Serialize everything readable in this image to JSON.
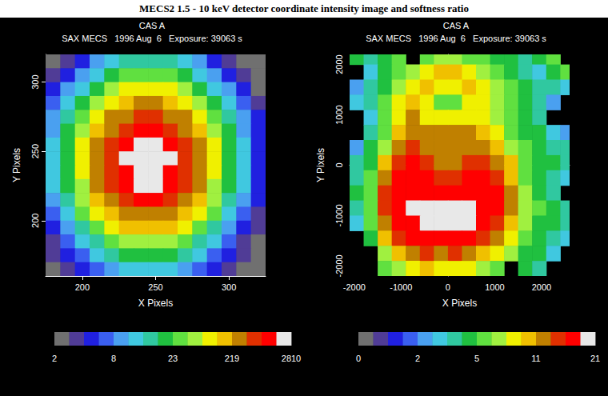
{
  "title": "MECS2 1.5 - 10 keV detector coordinate intensity image and softness ratio",
  "chart_data": [
    {
      "type": "heatmap",
      "title": "CAS A",
      "subtitle": "SAX MECS   1996 Aug  6   Exposure: 39063 s",
      "xlabel": "X Pixels",
      "ylabel": "Y Pixels",
      "xlim": [
        175,
        325
      ],
      "ylim": [
        160,
        320
      ],
      "xticks": [
        200,
        250,
        300
      ],
      "yticks": [
        200,
        250,
        300
      ],
      "x": [
        180,
        190,
        200,
        210,
        220,
        230,
        240,
        250,
        260,
        270,
        280,
        290,
        300,
        310,
        320
      ],
      "y": [
        315,
        305,
        295,
        285,
        275,
        265,
        255,
        245,
        235,
        225,
        215,
        205,
        195,
        185,
        175,
        165
      ],
      "cells": [
        [
          2.5,
          4,
          5.5,
          10,
          13,
          17,
          17,
          17,
          17,
          13,
          10,
          5.5,
          4,
          2.5,
          2.5
        ],
        [
          4,
          5.5,
          10,
          13,
          21,
          40,
          40,
          40,
          40,
          21,
          13,
          10,
          5.5,
          4,
          2.5
        ],
        [
          5.5,
          10,
          13,
          21,
          90,
          140,
          140,
          140,
          140,
          90,
          21,
          13,
          10,
          5.5,
          2.5
        ],
        [
          7,
          13,
          21,
          90,
          140,
          190,
          400,
          400,
          190,
          140,
          90,
          21,
          13,
          7,
          4
        ],
        [
          10,
          17,
          40,
          140,
          400,
          400,
          1100,
          1100,
          400,
          400,
          140,
          40,
          17,
          10,
          5.5
        ],
        [
          10,
          21,
          90,
          190,
          400,
          1100,
          1800,
          1800,
          1100,
          400,
          190,
          90,
          21,
          10,
          5.5
        ],
        [
          13,
          21,
          140,
          400,
          1100,
          1800,
          2500,
          2500,
          1800,
          1100,
          400,
          140,
          21,
          13,
          5.5
        ],
        [
          13,
          21,
          140,
          400,
          1100,
          2500,
          2500,
          2500,
          2500,
          1100,
          400,
          140,
          21,
          13,
          5.5
        ],
        [
          13,
          21,
          140,
          400,
          1100,
          1800,
          2500,
          2500,
          1800,
          1100,
          400,
          140,
          21,
          13,
          5.5
        ],
        [
          13,
          21,
          90,
          400,
          1100,
          1800,
          2500,
          2500,
          1800,
          1100,
          400,
          90,
          21,
          13,
          5.5
        ],
        [
          10,
          17,
          90,
          190,
          400,
          1100,
          1800,
          1800,
          1100,
          400,
          190,
          90,
          17,
          10,
          5.5
        ],
        [
          7,
          13,
          40,
          140,
          190,
          400,
          400,
          400,
          400,
          190,
          140,
          40,
          13,
          7,
          4
        ],
        [
          5.5,
          10,
          17,
          40,
          140,
          190,
          190,
          190,
          190,
          140,
          40,
          17,
          10,
          5.5,
          4
        ],
        [
          4,
          7,
          13,
          17,
          40,
          90,
          90,
          90,
          90,
          40,
          17,
          13,
          7,
          4,
          2.5
        ],
        [
          4,
          5.5,
          7,
          13,
          17,
          21,
          21,
          21,
          21,
          17,
          13,
          7,
          5.5,
          4,
          2.5
        ],
        [
          2.5,
          4,
          5.5,
          7,
          10,
          13,
          13,
          13,
          13,
          10,
          7,
          5.5,
          4,
          2.5,
          2.5
        ]
      ],
      "colorbar": {
        "range": [
          2,
          2810
        ],
        "ticks": [
          2,
          8,
          23,
          219,
          2810
        ],
        "colors": [
          "#707070",
          "#503c96",
          "#2020e0",
          "#3a5ff0",
          "#4aa0f0",
          "#40c8e0",
          "#30c8a0",
          "#20c040",
          "#60e040",
          "#a0f040",
          "#f0f000",
          "#f0c000",
          "#c08000",
          "#e03000",
          "#ff0000",
          "#e8e8e8"
        ]
      }
    },
    {
      "type": "heatmap",
      "title": "CAS A",
      "subtitle": "SAX MECS   1996 Aug  6   Exposure: 39063 s",
      "xlabel": "X Pixels",
      "ylabel": "Y Pixels",
      "xlim": [
        -2100,
        2600
      ],
      "ylim": [
        -2200,
        2200
      ],
      "xticks": [
        -2000,
        -1000,
        0,
        1000,
        2000
      ],
      "yticks": [
        -2000,
        -1000,
        0,
        1000,
        2000
      ],
      "x": [
        -1950,
        -1650,
        -1350,
        -1050,
        -750,
        -450,
        -150,
        150,
        450,
        750,
        1050,
        1350,
        1650,
        1950,
        2250,
        2550
      ],
      "y": [
        2150,
        1850,
        1550,
        1250,
        950,
        650,
        350,
        50,
        -250,
        -550,
        -850,
        -1150,
        -1450,
        -1750,
        -2050
      ],
      "cells": [
        [
          4.6,
          3.9,
          4.6,
          5.7,
          null,
          5.7,
          7.2,
          7.2,
          5.7,
          5.7,
          4.6,
          4.6,
          3.9,
          4.6,
          5.7,
          null
        ],
        [
          null,
          3.1,
          4.6,
          5.7,
          7.2,
          8.7,
          10.2,
          10.2,
          8.7,
          7.2,
          5.7,
          4.6,
          3.9,
          3.1,
          4.6,
          5.7
        ],
        [
          2.4,
          3.9,
          4.6,
          7.2,
          8.7,
          10.2,
          8.7,
          8.7,
          10.2,
          8.7,
          7.2,
          5.7,
          4.6,
          3.9,
          3.9,
          3.1
        ],
        [
          3.1,
          3.9,
          5.7,
          8.7,
          10.2,
          8.7,
          5.7,
          5.7,
          8.7,
          8.7,
          7.2,
          5.7,
          4.6,
          3.9,
          2.4,
          null
        ],
        [
          null,
          3.1,
          5.7,
          8.7,
          12.2,
          8.7,
          8.7,
          8.7,
          8.7,
          8.7,
          7.2,
          5.7,
          4.6,
          3.9,
          null,
          null
        ],
        [
          null,
          3.9,
          5.7,
          10.2,
          12.2,
          12.2,
          12.2,
          12.2,
          12.2,
          10.2,
          8.7,
          5.7,
          4.6,
          4.6,
          3.1,
          2.4
        ],
        [
          2.4,
          4.6,
          7.2,
          12.2,
          14.7,
          12.2,
          12.2,
          12.2,
          12.2,
          12.2,
          10.2,
          7.2,
          5.7,
          4.6,
          3.9,
          3.9
        ],
        [
          3.9,
          4.6,
          10.2,
          14.7,
          17.2,
          14.7,
          12.2,
          12.2,
          14.7,
          14.7,
          12.2,
          10.2,
          5.7,
          4.6,
          4.6,
          3.9
        ],
        [
          3.9,
          5.7,
          12.2,
          17.2,
          17.2,
          17.2,
          14.7,
          14.7,
          17.2,
          17.2,
          14.7,
          10.2,
          5.7,
          4.6,
          3.9,
          3.1
        ],
        [
          4.6,
          5.7,
          14.7,
          17.2,
          17.2,
          17.2,
          17.2,
          17.2,
          17.2,
          17.2,
          17.2,
          12.2,
          7.2,
          4.6,
          3.9,
          null
        ],
        [
          3.9,
          5.7,
          14.7,
          17.2,
          19.7,
          19.7,
          19.7,
          19.7,
          19.7,
          17.2,
          17.2,
          12.2,
          7.2,
          5.7,
          4.6,
          3.9
        ],
        [
          3.1,
          5.7,
          12.2,
          17.2,
          17.2,
          19.7,
          19.7,
          19.7,
          19.7,
          17.2,
          14.7,
          10.2,
          7.2,
          4.6,
          4.6,
          3.9
        ],
        [
          null,
          4.6,
          10.2,
          14.7,
          17.2,
          17.2,
          17.2,
          17.2,
          17.2,
          14.7,
          12.2,
          8.7,
          5.7,
          4.6,
          3.9,
          3.1
        ],
        [
          null,
          null,
          7.2,
          10.2,
          12.2,
          14.7,
          12.2,
          14.7,
          12.2,
          10.2,
          8.7,
          7.2,
          4.6,
          4.6,
          3.1,
          null
        ],
        [
          null,
          null,
          5.7,
          7.2,
          8.7,
          10.2,
          8.7,
          8.7,
          8.7,
          7.2,
          5.7,
          null,
          4.6,
          3.9,
          null,
          null
        ]
      ],
      "colorbar": {
        "range": [
          0,
          21
        ],
        "ticks": [
          0,
          2,
          5,
          11,
          21
        ],
        "colors": [
          "#707070",
          "#503c96",
          "#2020e0",
          "#3a5ff0",
          "#4aa0f0",
          "#40c8e0",
          "#30c8a0",
          "#20c040",
          "#60e040",
          "#a0f040",
          "#f0f000",
          "#f0c000",
          "#c08000",
          "#e03000",
          "#ff0000",
          "#e8e8e8"
        ]
      }
    }
  ]
}
